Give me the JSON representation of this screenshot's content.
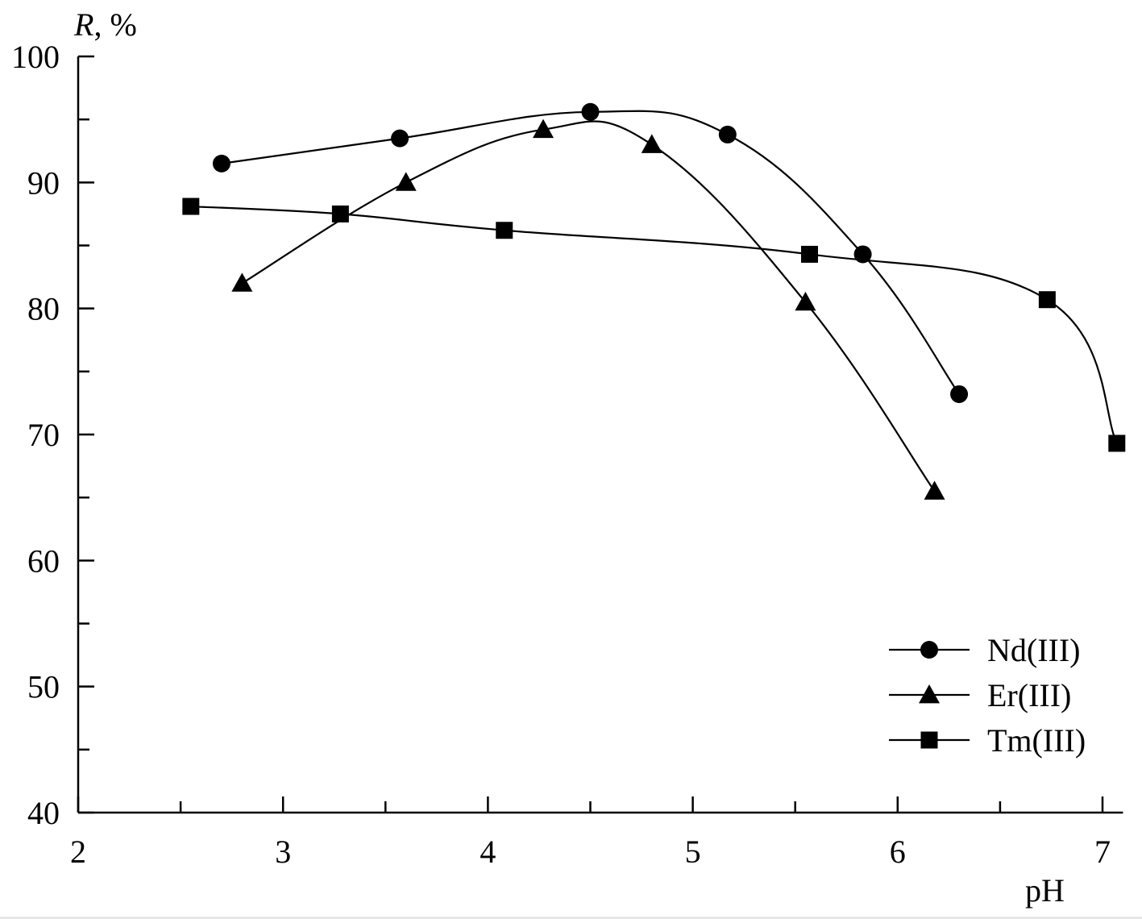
{
  "chart_data": {
    "type": "line",
    "ylabel_var": "R",
    "ylabel_unit": ", %",
    "xlabel": "pH",
    "xlim": [
      2,
      7.1
    ],
    "ylim": [
      40,
      100
    ],
    "xticks": [
      2,
      3,
      4,
      5,
      6,
      7
    ],
    "xticks_minor": [
      2.5,
      3.5,
      4.5,
      5.5,
      6.5
    ],
    "yticks": [
      40,
      50,
      60,
      70,
      80,
      90,
      100
    ],
    "yticks_minor": [
      45,
      55,
      65,
      75,
      85,
      95
    ],
    "legend_position": "lower-right",
    "grid": false,
    "series": [
      {
        "name": "Nd(III)",
        "marker": "circle",
        "x": [
          2.7,
          3.57,
          4.5,
          5.17,
          5.83,
          6.3
        ],
        "y": [
          91.5,
          93.5,
          95.6,
          93.8,
          84.3,
          73.2
        ]
      },
      {
        "name": "Er(III)",
        "marker": "triangle",
        "x": [
          2.8,
          3.6,
          4.27,
          4.8,
          5.55,
          6.18
        ],
        "y": [
          82,
          90,
          94.2,
          93,
          80.5,
          65.5
        ]
      },
      {
        "name": "Tm(III)",
        "marker": "square",
        "x": [
          2.55,
          3.28,
          4.08,
          5.57,
          6.73,
          7.07
        ],
        "y": [
          88.1,
          87.5,
          86.2,
          84.3,
          80.7,
          69.3
        ]
      }
    ]
  }
}
